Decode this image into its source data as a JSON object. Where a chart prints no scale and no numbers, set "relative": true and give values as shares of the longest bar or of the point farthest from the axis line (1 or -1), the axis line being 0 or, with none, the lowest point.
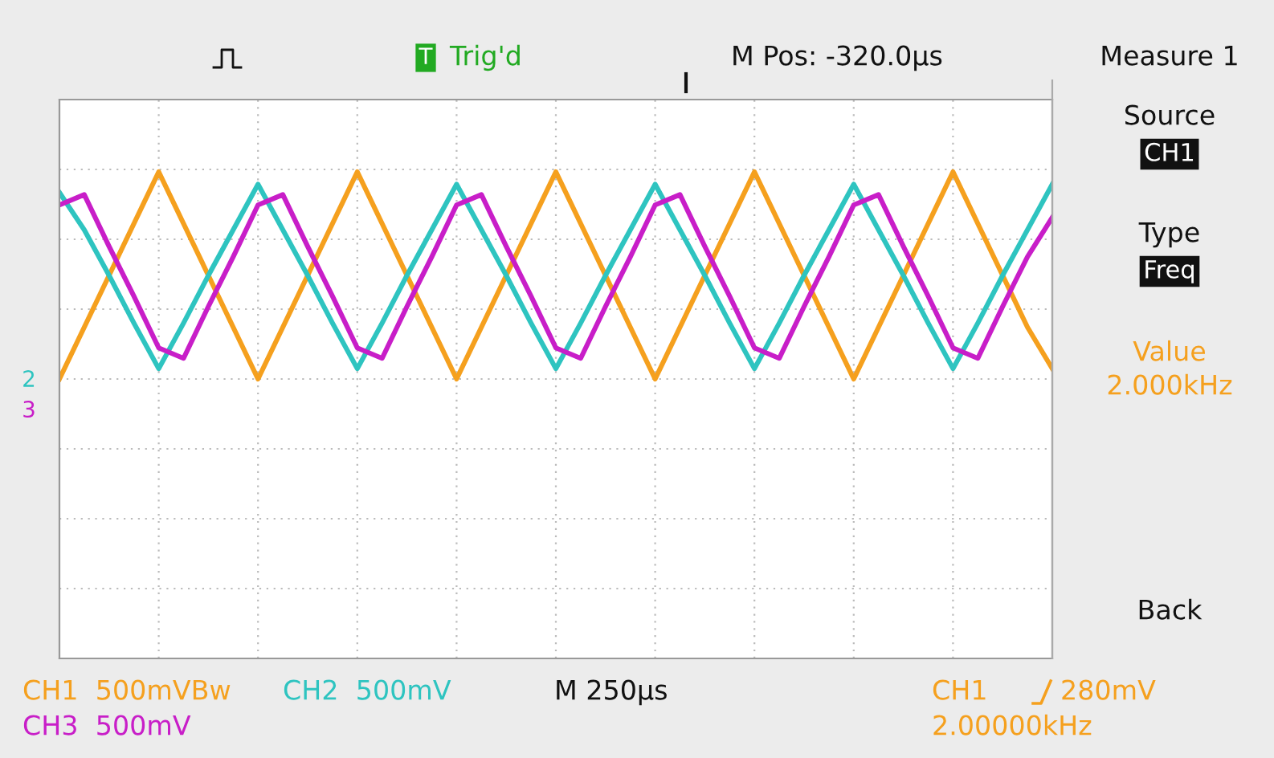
{
  "chart_data": {
    "type": "line",
    "relative": true,
    "grid": true,
    "legend": false,
    "marker": "none",
    "line_style": "solid",
    "categories": [
      null,
      null,
      null,
      null,
      null,
      null,
      null,
      null,
      null,
      null,
      null,
      null,
      null,
      null,
      null,
      null,
      null,
      null,
      null,
      null,
      null,
      null,
      null,
      null,
      null,
      null,
      null,
      null,
      null,
      null,
      null,
      null,
      null,
      null,
      null,
      null,
      null,
      null,
      null,
      null,
      null
    ],
    "series": [
      {
        "color": "#f5a01e",
        "values": [
          0,
          0.25,
          0.5,
          0.75,
          1,
          0.75,
          0.5,
          0.25,
          0,
          0.25,
          0.5,
          0.75,
          1,
          0.75,
          0.5,
          0.25,
          0,
          0.25,
          0.5,
          0.75,
          1,
          0.75,
          0.5,
          0.25,
          0,
          0.25,
          0.5,
          0.75,
          1,
          0.75,
          0.5,
          0.25,
          0,
          0.25,
          0.5,
          0.75,
          1,
          0.75,
          0.5,
          0.25,
          0.05
        ]
      },
      {
        "color": "#2ec4c0",
        "values": [
          0.9,
          0.72,
          0.5,
          0.27,
          0.05,
          0.27,
          0.5,
          0.72,
          0.94,
          0.72,
          0.5,
          0.27,
          0.05,
          0.27,
          0.5,
          0.72,
          0.94,
          0.72,
          0.5,
          0.27,
          0.05,
          0.27,
          0.5,
          0.72,
          0.94,
          0.72,
          0.5,
          0.27,
          0.05,
          0.27,
          0.5,
          0.72,
          0.94,
          0.72,
          0.5,
          0.27,
          0.05,
          0.27,
          0.5,
          0.72,
          0.94
        ]
      },
      {
        "color": "#c81ec8",
        "values": [
          0.84,
          0.89,
          0.64,
          0.4,
          0.15,
          0.1,
          0.35,
          0.59,
          0.84,
          0.89,
          0.64,
          0.4,
          0.15,
          0.1,
          0.35,
          0.59,
          0.84,
          0.89,
          0.64,
          0.4,
          0.15,
          0.1,
          0.35,
          0.59,
          0.84,
          0.89,
          0.64,
          0.4,
          0.15,
          0.1,
          0.35,
          0.59,
          0.84,
          0.89,
          0.64,
          0.4,
          0.15,
          0.1,
          0.35,
          0.59,
          0.78
        ]
      }
    ],
    "annotations": [
      "T",
      "Trig'd",
      "M Pos: -320.0µs",
      "Measure 1",
      "Source",
      "CH1",
      "Type",
      "Freq",
      "Value",
      "2.000kHz",
      "Back",
      "2",
      "3",
      "CH1  500mVBw",
      "CH2  500mV",
      "M 250µs",
      "CH1",
      "280mV",
      "CH3  500mV",
      "2.00000kHz"
    ]
  }
}
